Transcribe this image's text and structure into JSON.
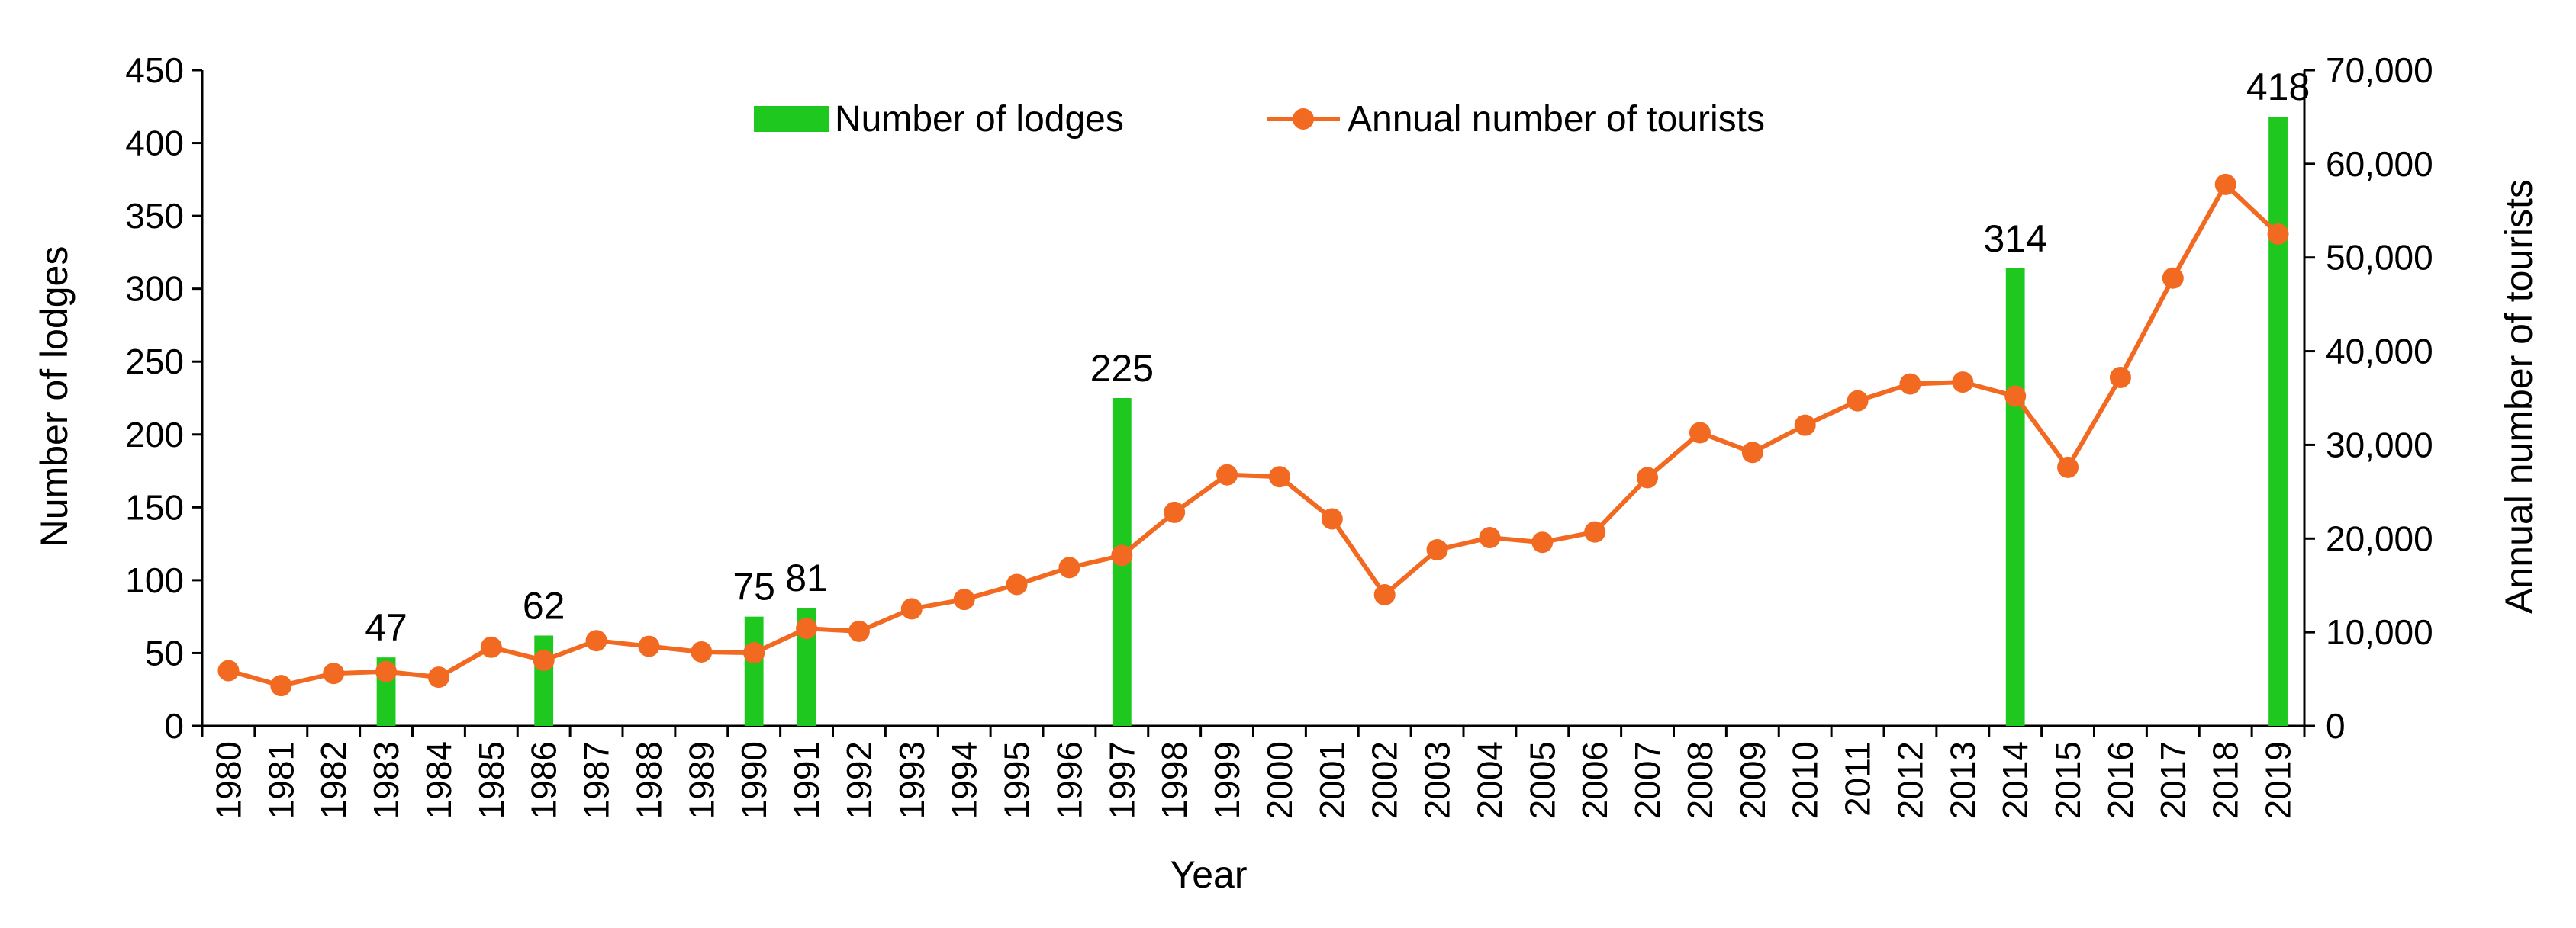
{
  "chart_data": {
    "type": "bar+line",
    "x": [
      1980,
      1981,
      1982,
      1983,
      1984,
      1985,
      1986,
      1987,
      1988,
      1989,
      1990,
      1991,
      1992,
      1993,
      1994,
      1995,
      1996,
      1997,
      1998,
      1999,
      2000,
      2001,
      2002,
      2003,
      2004,
      2005,
      2006,
      2007,
      2008,
      2009,
      2010,
      2011,
      2012,
      2013,
      2014,
      2015,
      2016,
      2017,
      2018,
      2019
    ],
    "x_labels": [
      "1980",
      "1981",
      "1982",
      "1983",
      "1984",
      "1985",
      "1986",
      "1987",
      "1988",
      "1989",
      "1990",
      "1991",
      "1992",
      "1993",
      "1994",
      "1995",
      "1996",
      "1997",
      "1998",
      "1999",
      "2000",
      "2001",
      "2002",
      "2003",
      "2004",
      "2005",
      "2006",
      "2007",
      "2008",
      "2009",
      "2010",
      "2011",
      "2012",
      "2013",
      "2014",
      "2015",
      "2016",
      "2017",
      "2018",
      "2019"
    ],
    "xlabel": "Year",
    "ylabel_left": "Number of lodges",
    "ylabel_right": "Annual number of tourists",
    "ylim_left": [
      0,
      450
    ],
    "ylim_right": [
      0,
      70000
    ],
    "yticks_left": [
      "0",
      "50",
      "100",
      "150",
      "200",
      "250",
      "300",
      "350",
      "400",
      "450"
    ],
    "yticks_right": [
      "0",
      "10,000",
      "20,000",
      "30,000",
      "40,000",
      "50,000",
      "60,000",
      "70,000"
    ],
    "grid": false,
    "legend_position": "top-center",
    "series": [
      {
        "name": "Number of lodges",
        "type": "bar",
        "axis": "left",
        "color": "#1ec81e",
        "points": [
          {
            "year": 1983,
            "value": 47,
            "label": "47"
          },
          {
            "year": 1986,
            "value": 62,
            "label": "62"
          },
          {
            "year": 1990,
            "value": 75,
            "label": "75"
          },
          {
            "year": 1991,
            "value": 81,
            "label": "81"
          },
          {
            "year": 1997,
            "value": 225,
            "label": "225"
          },
          {
            "year": 2014,
            "value": 314,
            "label": "314"
          },
          {
            "year": 2019,
            "value": 418,
            "label": "418"
          }
        ]
      },
      {
        "name": "Annual number of tourists",
        "type": "line",
        "axis": "right",
        "color": "#f26a21",
        "values": [
          5900,
          4300,
          5600,
          5800,
          5200,
          8400,
          7000,
          9100,
          8500,
          7900,
          7800,
          10400,
          10100,
          12500,
          13500,
          15100,
          16900,
          18200,
          22800,
          26800,
          26600,
          22100,
          14000,
          18800,
          20100,
          19600,
          20700,
          26500,
          31300,
          29200,
          32100,
          34700,
          36500,
          36700,
          35200,
          27600,
          37200,
          47800,
          57800,
          52500
        ]
      }
    ]
  }
}
